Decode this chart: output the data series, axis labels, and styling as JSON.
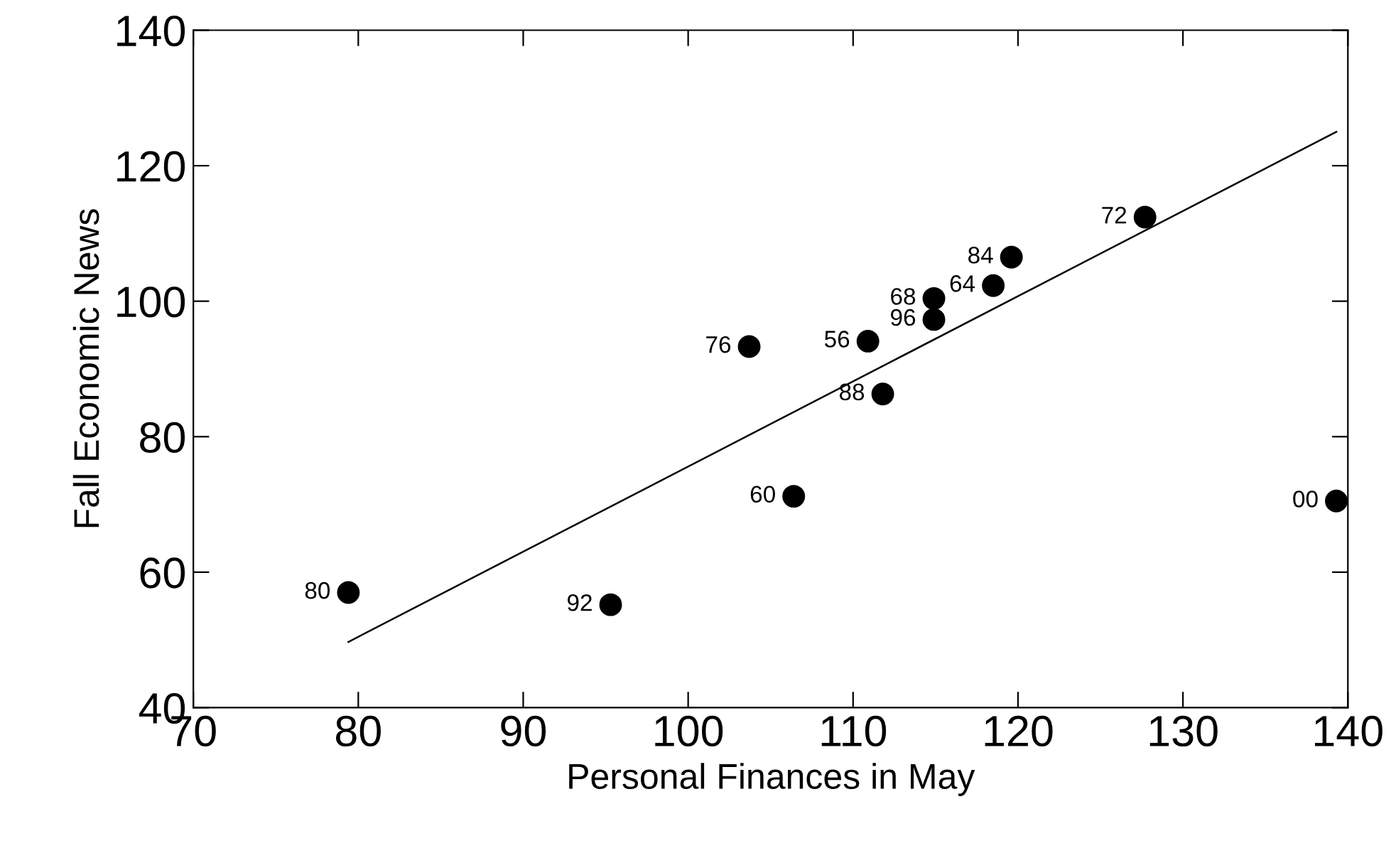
{
  "chart_data": {
    "type": "scatter",
    "xlabel": "Personal Finances in May",
    "ylabel": "Fall Economic News",
    "xlim": [
      70,
      140
    ],
    "xticks": [
      70,
      80,
      90,
      100,
      110,
      120,
      130,
      140
    ],
    "ylim": [
      40,
      140
    ],
    "yticks": [
      40,
      60,
      80,
      100,
      120,
      140
    ],
    "grid": false,
    "legend": false,
    "marker": "circle",
    "series": [
      {
        "color": "#000000",
        "x": [
          79.4,
          95.3,
          106.4,
          103.7,
          110.9,
          111.8,
          114.9,
          114.9,
          118.5,
          119.6,
          127.7,
          139.3
        ],
        "values": [
          57,
          55.2,
          71.2,
          93.3,
          94.1,
          86.3,
          100.4,
          97.3,
          102.3,
          106.5,
          112.4,
          70.5
        ]
      },
      {
        "type": "line",
        "color": "#000000",
        "x": [
          79.4,
          139.3
        ],
        "values": [
          49.7,
          125
        ],
        "marker": "none",
        "line_style": "solid"
      }
    ],
    "annotations": [
      {
        "text": "80",
        "x": 79.4,
        "y": 57
      },
      {
        "text": "92",
        "x": 95.3,
        "y": 55.2
      },
      {
        "text": "60",
        "x": 106.4,
        "y": 71.2
      },
      {
        "text": "76",
        "x": 103.7,
        "y": 93.3
      },
      {
        "text": "56",
        "x": 110.9,
        "y": 94.1
      },
      {
        "text": "88",
        "x": 111.8,
        "y": 86.3
      },
      {
        "text": "68",
        "x": 114.9,
        "y": 100.4
      },
      {
        "text": "96",
        "x": 114.9,
        "y": 97.3
      },
      {
        "text": "64",
        "x": 118.5,
        "y": 102.3
      },
      {
        "text": "84",
        "x": 119.6,
        "y": 106.5
      },
      {
        "text": "72",
        "x": 127.7,
        "y": 112.4
      },
      {
        "text": "00",
        "x": 139.3,
        "y": 70.5
      }
    ]
  }
}
